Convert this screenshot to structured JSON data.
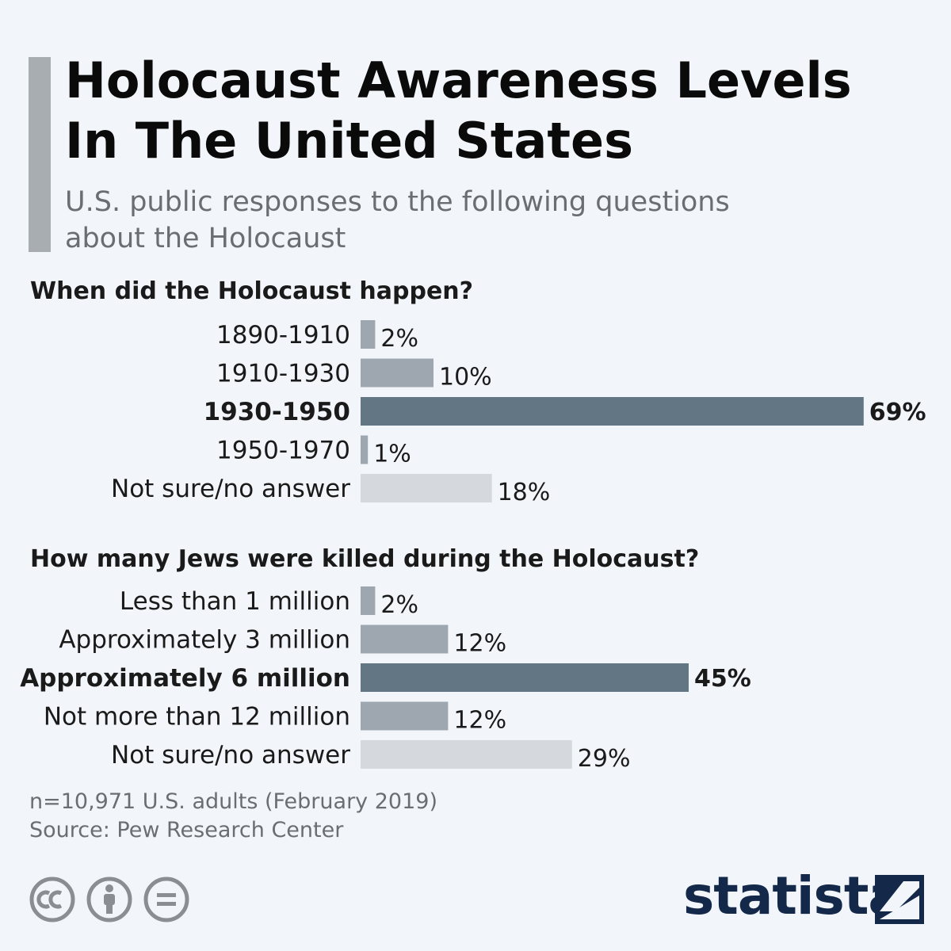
{
  "header": {
    "title_line1": "Holocaust Awareness Levels",
    "title_line2": "In The United States",
    "subtitle_line1": "U.S. public responses to the following questions",
    "subtitle_line2": "about the Holocaust"
  },
  "colors": {
    "highlight_bar": "#637684",
    "regular_bar": "#9ea7b0",
    "notsure_bar": "#d5d9dd",
    "accent": "#a8adb2",
    "brand": "#14284a"
  },
  "chart_data": [
    {
      "type": "bar",
      "orientation": "horizontal",
      "title": "When did the Holocaust happen?",
      "categories": [
        "1890-1910",
        "1910-1930",
        "1930-1950",
        "1950-1970",
        "Not sure/no answer"
      ],
      "values": [
        2,
        10,
        69,
        1,
        18
      ],
      "value_labels": [
        "2%",
        "10%",
        "69%",
        "1%",
        "18%"
      ],
      "highlight_index": 2,
      "unit": "%"
    },
    {
      "type": "bar",
      "orientation": "horizontal",
      "title": "How many Jews were killed during the Holocaust?",
      "categories": [
        "Less than 1 million",
        "Approximately 3 million",
        "Approximately 6 million",
        "Not more than 12 million",
        "Not sure/no answer"
      ],
      "values": [
        2,
        12,
        45,
        12,
        29
      ],
      "value_labels": [
        "2%",
        "12%",
        "45%",
        "12%",
        "29%"
      ],
      "highlight_index": 2,
      "unit": "%"
    }
  ],
  "footer": {
    "sample_note": "n=10,971 U.S. adults (February 2019)",
    "source": "Source: Pew Research Center",
    "license_icons": [
      "cc-icon",
      "attribution-icon",
      "no-derivatives-icon"
    ],
    "brand_name": "statista"
  }
}
